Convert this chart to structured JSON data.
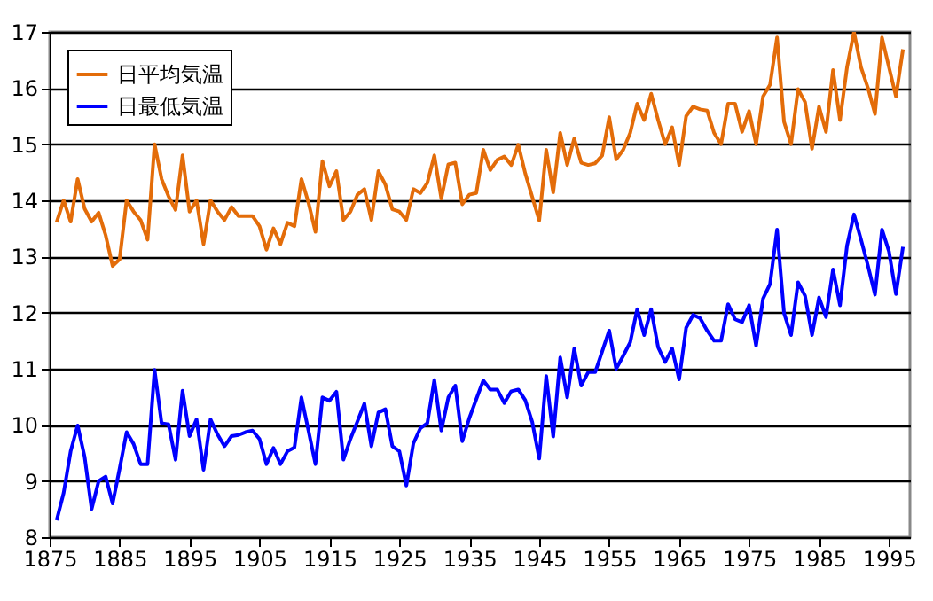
{
  "chart_data": {
    "type": "line",
    "x": [
      1876,
      1877,
      1878,
      1879,
      1880,
      1881,
      1882,
      1883,
      1884,
      1885,
      1886,
      1887,
      1888,
      1889,
      1890,
      1891,
      1892,
      1893,
      1894,
      1895,
      1896,
      1897,
      1898,
      1899,
      1900,
      1901,
      1902,
      1903,
      1904,
      1905,
      1906,
      1907,
      1908,
      1909,
      1910,
      1911,
      1912,
      1913,
      1914,
      1915,
      1916,
      1917,
      1918,
      1919,
      1920,
      1921,
      1922,
      1923,
      1924,
      1925,
      1926,
      1927,
      1928,
      1929,
      1930,
      1931,
      1932,
      1933,
      1934,
      1935,
      1936,
      1937,
      1938,
      1939,
      1940,
      1941,
      1942,
      1943,
      1944,
      1945,
      1946,
      1947,
      1948,
      1949,
      1950,
      1951,
      1952,
      1953,
      1954,
      1955,
      1956,
      1957,
      1958,
      1959,
      1960,
      1961,
      1962,
      1963,
      1964,
      1965,
      1966,
      1967,
      1968,
      1969,
      1970,
      1971,
      1972,
      1973,
      1974,
      1975,
      1976,
      1977,
      1978,
      1979,
      1980,
      1981,
      1982,
      1983,
      1984,
      1985,
      1986,
      1987,
      1988,
      1989,
      1990,
      1991,
      1992,
      1993,
      1994,
      1995,
      1996,
      1997
    ],
    "series": [
      {
        "name": "日平均気温",
        "color": "#e36c09",
        "values": [
          13.61,
          14.0,
          13.62,
          14.38,
          13.85,
          13.62,
          13.78,
          13.38,
          12.83,
          12.95,
          14.0,
          13.8,
          13.65,
          13.3,
          15.0,
          14.38,
          14.07,
          13.83,
          14.8,
          13.8,
          14.0,
          13.22,
          14.0,
          13.8,
          13.65,
          13.88,
          13.72,
          13.72,
          13.72,
          13.54,
          13.12,
          13.5,
          13.22,
          13.6,
          13.54,
          14.38,
          13.96,
          13.44,
          14.7,
          14.25,
          14.52,
          13.65,
          13.8,
          14.1,
          14.2,
          13.65,
          14.52,
          14.28,
          13.84,
          13.8,
          13.65,
          14.2,
          14.13,
          14.31,
          14.8,
          14.03,
          14.64,
          14.67,
          13.93,
          14.1,
          14.13,
          14.9,
          14.54,
          14.72,
          14.78,
          14.63,
          14.99,
          14.48,
          14.06,
          13.64,
          14.9,
          14.14,
          15.2,
          14.63,
          15.1,
          14.67,
          14.63,
          14.66,
          14.8,
          15.48,
          14.73,
          14.9,
          15.2,
          15.72,
          15.43,
          15.9,
          15.43,
          15.0,
          15.3,
          14.63,
          15.5,
          15.67,
          15.62,
          15.6,
          15.2,
          15.0,
          15.72,
          15.72,
          15.22,
          15.59,
          15.0,
          15.85,
          16.06,
          16.9,
          15.4,
          15.0,
          15.98,
          15.75,
          14.92,
          15.67,
          15.22,
          16.32,
          15.43,
          16.37,
          17.0,
          16.37,
          16.0,
          15.54,
          16.9,
          16.37,
          15.85,
          16.69
        ]
      },
      {
        "name": "日最低気温",
        "color": "#0000ff",
        "values": [
          8.3,
          8.79,
          9.53,
          9.99,
          9.43,
          8.5,
          9.0,
          9.08,
          8.6,
          9.22,
          9.87,
          9.66,
          9.3,
          9.3,
          10.98,
          10.03,
          10.01,
          9.38,
          10.61,
          9.8,
          10.1,
          9.2,
          10.1,
          9.83,
          9.62,
          9.8,
          9.82,
          9.87,
          9.9,
          9.75,
          9.3,
          9.59,
          9.3,
          9.53,
          9.6,
          10.49,
          9.9,
          9.3,
          10.49,
          10.43,
          10.59,
          9.38,
          9.75,
          10.06,
          10.38,
          9.62,
          10.22,
          10.28,
          9.62,
          9.53,
          8.92,
          9.67,
          9.94,
          10.03,
          10.8,
          9.9,
          10.49,
          10.7,
          9.71,
          10.12,
          10.46,
          10.79,
          10.63,
          10.63,
          10.39,
          10.6,
          10.63,
          10.44,
          10.05,
          9.4,
          10.87,
          9.79,
          11.2,
          10.49,
          11.36,
          10.7,
          10.94,
          10.94,
          11.31,
          11.68,
          11.0,
          11.23,
          11.47,
          12.06,
          11.6,
          12.06,
          11.38,
          11.12,
          11.36,
          10.81,
          11.73,
          11.96,
          11.9,
          11.68,
          11.5,
          11.5,
          12.15,
          11.88,
          11.83,
          12.13,
          11.41,
          12.25,
          12.51,
          13.48,
          11.99,
          11.6,
          12.54,
          12.3,
          11.6,
          12.27,
          11.92,
          12.77,
          12.13,
          13.19,
          13.75,
          13.3,
          12.83,
          12.32,
          13.48,
          13.09,
          12.33,
          13.17
        ]
      }
    ],
    "xlim": [
      1875,
      1998
    ],
    "xticks": [
      1875,
      1885,
      1895,
      1905,
      1915,
      1925,
      1935,
      1945,
      1955,
      1965,
      1975,
      1985,
      1995
    ],
    "ylim": [
      8,
      17
    ],
    "yticks": [
      8,
      9,
      10,
      11,
      12,
      13,
      14,
      15,
      16,
      17
    ],
    "grid": "y",
    "legend": "top left"
  }
}
